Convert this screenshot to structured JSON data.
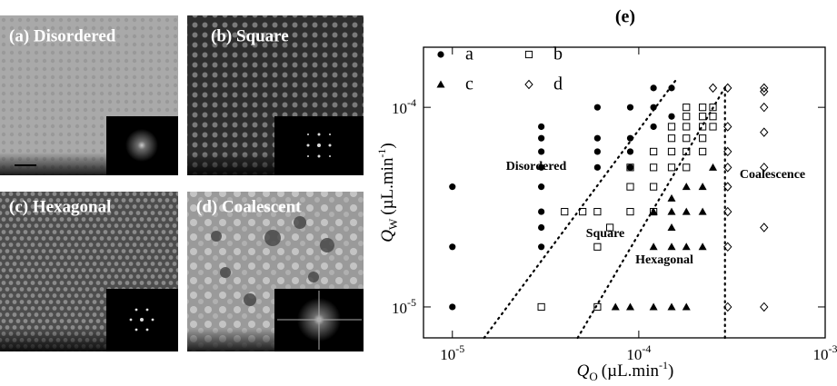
{
  "panels": [
    {
      "label": "(a) Disordered"
    },
    {
      "label": "(b) Square"
    },
    {
      "label": "(c) Hexagonal"
    },
    {
      "label": "(d) Coalescent"
    }
  ],
  "chart_data": {
    "type": "scatter",
    "title": "(e)",
    "log_x": true,
    "log_y": true,
    "x_label": {
      "symbol": "Q",
      "subscript": "O",
      "unit": "(µL.min",
      "exponent": "-1",
      "close": ")"
    },
    "y_label": {
      "symbol": "Q",
      "subscript": "W",
      "unit": "(µL.min",
      "exponent": "-1",
      "close": ")"
    },
    "xlim": [
      7e-06,
      0.001
    ],
    "ylim": [
      7e-06,
      0.0002
    ],
    "xticks": [
      {
        "value": 1e-05,
        "label": "10",
        "exponent": "-5"
      },
      {
        "value": 0.0001,
        "label": "10",
        "exponent": "-4"
      },
      {
        "value": 0.001,
        "label": "10",
        "exponent": "-3"
      }
    ],
    "yticks": [
      {
        "value": 1e-05,
        "label": "10",
        "exponent": "-5"
      },
      {
        "value": 0.0001,
        "label": "10",
        "exponent": "-4"
      }
    ],
    "series": [
      {
        "name": "a",
        "marker": "circle",
        "color": "#000",
        "x": [
          1e-05,
          1e-05,
          1e-05,
          3e-05,
          3e-05,
          3e-05,
          3e-05,
          3e-05,
          3e-05,
          3e-05,
          3e-05,
          6e-05,
          6e-05,
          6e-05,
          6e-05,
          9e-05,
          9e-05,
          9e-05,
          9e-05,
          0.00012,
          0.00012,
          0.00012,
          0.00015,
          0.00015
        ],
        "values": [
          1e-05,
          2e-05,
          4e-05,
          2e-05,
          2.5e-05,
          3e-05,
          4e-05,
          5e-05,
          6e-05,
          7e-05,
          8e-05,
          0.0001,
          7e-05,
          6e-05,
          5e-05,
          0.0001,
          7e-05,
          6e-05,
          5e-05,
          0.000125,
          0.0001,
          8e-05,
          0.000125,
          9e-05
        ]
      },
      {
        "name": "b",
        "marker": "square",
        "color": "#000",
        "x": [
          3e-05,
          6e-05,
          6e-05,
          7e-05,
          4e-05,
          5e-05,
          6e-05,
          9e-05,
          0.00012,
          9e-05,
          0.00012,
          9e-05,
          0.00012,
          0.00015,
          0.00018,
          0.00012,
          0.00015,
          0.00018,
          0.00022,
          0.00015,
          0.00018,
          0.00022,
          0.00015,
          0.00018,
          0.00022,
          0.00025,
          0.00018,
          0.00022,
          0.00025,
          0.00018,
          0.00022,
          0.00025
        ],
        "values": [
          1e-05,
          1e-05,
          2e-05,
          2.5e-05,
          3e-05,
          3e-05,
          3e-05,
          3e-05,
          3e-05,
          4e-05,
          4e-05,
          5e-05,
          5e-05,
          5e-05,
          5e-05,
          6e-05,
          6e-05,
          6e-05,
          6e-05,
          7e-05,
          7e-05,
          7e-05,
          8e-05,
          8e-05,
          8e-05,
          8e-05,
          9e-05,
          9e-05,
          9e-05,
          0.0001,
          0.0001,
          0.0001
        ]
      },
      {
        "name": "c",
        "marker": "triangle",
        "color": "#000",
        "x": [
          7.5e-05,
          9e-05,
          0.00012,
          0.00015,
          0.00018,
          0.00012,
          0.00015,
          0.00018,
          0.00022,
          0.00015,
          0.00012,
          0.00015,
          0.00018,
          0.00022,
          0.00015,
          0.00018,
          0.00022,
          0.00025
        ],
        "values": [
          1e-05,
          1e-05,
          1e-05,
          1e-05,
          1e-05,
          2e-05,
          2e-05,
          2e-05,
          2e-05,
          2.5e-05,
          3e-05,
          3e-05,
          3e-05,
          3e-05,
          3.5e-05,
          4e-05,
          4e-05,
          5e-05
        ]
      },
      {
        "name": "d",
        "marker": "diamond",
        "color": "#000",
        "x": [
          0.0003,
          0.0003,
          0.0003,
          0.0003,
          0.0003,
          0.0003,
          0.0003,
          0.0003,
          0.00047,
          0.00047,
          0.00047,
          0.00047,
          0.00047,
          0.00047,
          0.00047,
          0.00025
        ],
        "values": [
          1e-05,
          2e-05,
          3e-05,
          4e-05,
          5e-05,
          6e-05,
          8e-05,
          0.000125,
          1e-05,
          2.5e-05,
          5e-05,
          7.5e-05,
          0.0001,
          0.00012,
          0.000125,
          0.000125
        ]
      }
    ],
    "boundaries": [
      {
        "x": [
          1.48e-05,
          0.00016
        ],
        "y": [
          7e-06,
          0.000139
        ]
      },
      {
        "x": [
          4.7e-05,
          0.000296
        ],
        "y": [
          7e-06,
          0.00013
        ]
      },
      {
        "x": [
          0.00029,
          0.00029
        ],
        "y": [
          7e-06,
          0.000128
        ]
      }
    ],
    "annotations": [
      "Disordered",
      "Square",
      "Hexagonal",
      "Coalescence"
    ]
  }
}
